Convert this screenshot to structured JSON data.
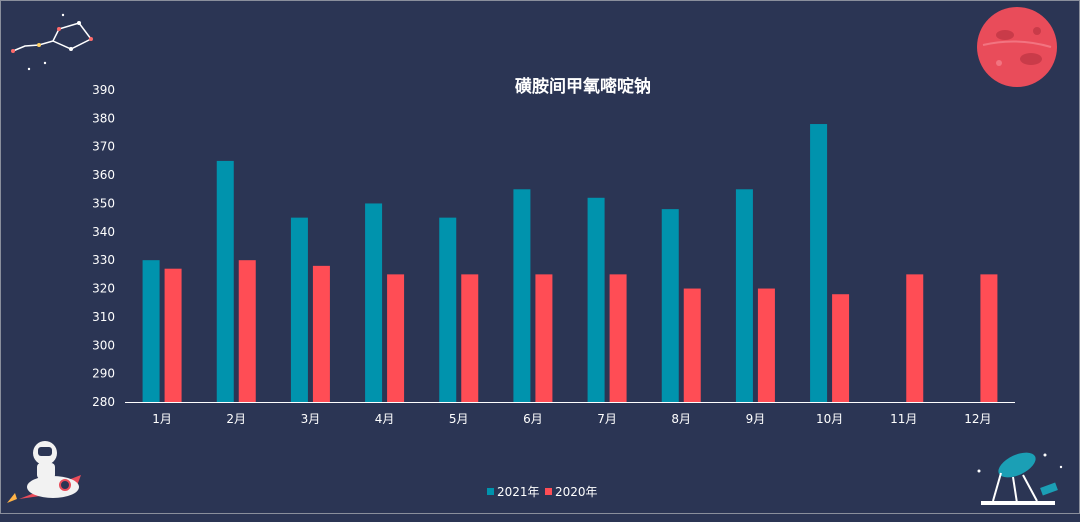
{
  "colors": {
    "background": "#2b3554",
    "series_2021": "#0093ad",
    "series_2020": "#ff4d55",
    "axis": "#ffffff"
  },
  "decorations": [
    "constellation-icon",
    "red-planet-icon",
    "astronaut-rocket-icon",
    "telescope-satellite-icon"
  ],
  "chart_data": {
    "type": "bar",
    "title": "磺胺间甲氧嘧啶钠",
    "xlabel": "",
    "ylabel": "",
    "ylim": [
      280,
      390
    ],
    "yticks": [
      280,
      290,
      300,
      310,
      320,
      330,
      340,
      350,
      360,
      370,
      380,
      390
    ],
    "grid": false,
    "legend_position": "bottom",
    "categories": [
      "1月",
      "2月",
      "3月",
      "4月",
      "5月",
      "6月",
      "7月",
      "8月",
      "9月",
      "10月",
      "11月",
      "12月"
    ],
    "series": [
      {
        "name": "2021年",
        "color": "#0093ad",
        "values": [
          330,
          365,
          345,
          350,
          345,
          355,
          352,
          348,
          355,
          378,
          null,
          null
        ]
      },
      {
        "name": "2020年",
        "color": "#ff4d55",
        "values": [
          327,
          330,
          328,
          325,
          325,
          325,
          325,
          320,
          320,
          318,
          325,
          325
        ]
      }
    ]
  }
}
